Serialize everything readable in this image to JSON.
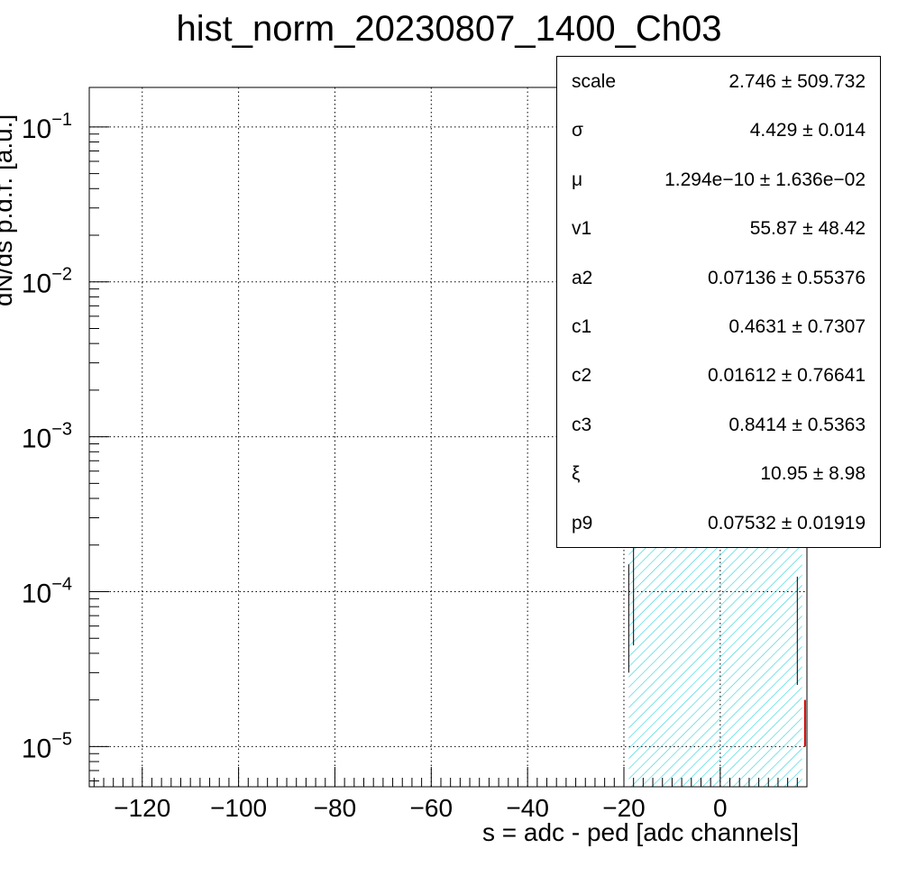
{
  "chart_data": {
    "type": "histogram",
    "title": "hist_norm_20230807_1400_Ch03",
    "xlabel": "s = adc - ped [adc channels]",
    "ylabel": "dN/ds p.d.f. [a.u.]",
    "xlim": [
      -131,
      18
    ],
    "ylim": [
      5.5e-06,
      0.18
    ],
    "yscale": "log",
    "grid": true,
    "x_ticks": [
      -120,
      -100,
      -80,
      -60,
      -40,
      -20,
      0
    ],
    "x_tick_labels": [
      "−120",
      "−100",
      "−80",
      "−60",
      "−40",
      "−20",
      "0"
    ],
    "y_ticks": [
      1e-05,
      0.0001,
      0.001,
      0.01,
      0.1
    ],
    "y_tick_labels": [
      {
        "base": "10",
        "exp": "−5"
      },
      {
        "base": "10",
        "exp": "−4"
      },
      {
        "base": "10",
        "exp": "−3"
      },
      {
        "base": "10",
        "exp": "−2"
      },
      {
        "base": "10",
        "exp": "−1"
      }
    ],
    "fit_curve": {
      "peak_x": 0,
      "peak_y": 0.09,
      "sigma": 4.429,
      "x_range": [
        -19,
        17
      ],
      "fill": "hatched",
      "color": "#00e0e8"
    },
    "stats": [
      {
        "name": "scale",
        "value": "2.746 ± 509.732"
      },
      {
        "name": "σ",
        "value": "4.429 ± 0.014"
      },
      {
        "name": "μ",
        "value": "1.294e−10 ± 1.636e−02"
      },
      {
        "name": "v1",
        "value": "55.87 ± 48.42"
      },
      {
        "name": "a2",
        "value": "0.07136 ± 0.55376"
      },
      {
        "name": "c1",
        "value": "0.4631 ± 0.7307"
      },
      {
        "name": "c2",
        "value": "0.01612 ± 0.76641"
      },
      {
        "name": "c3",
        "value": "0.8414 ± 0.5363"
      },
      {
        "name": "ξ",
        "value": "10.95 ± 8.98"
      },
      {
        "name": "p9",
        "value": "0.07532 ± 0.01919"
      }
    ],
    "colors": {
      "fit": "#00e0e8",
      "tail": "#d00000",
      "axis": "#000000"
    }
  }
}
